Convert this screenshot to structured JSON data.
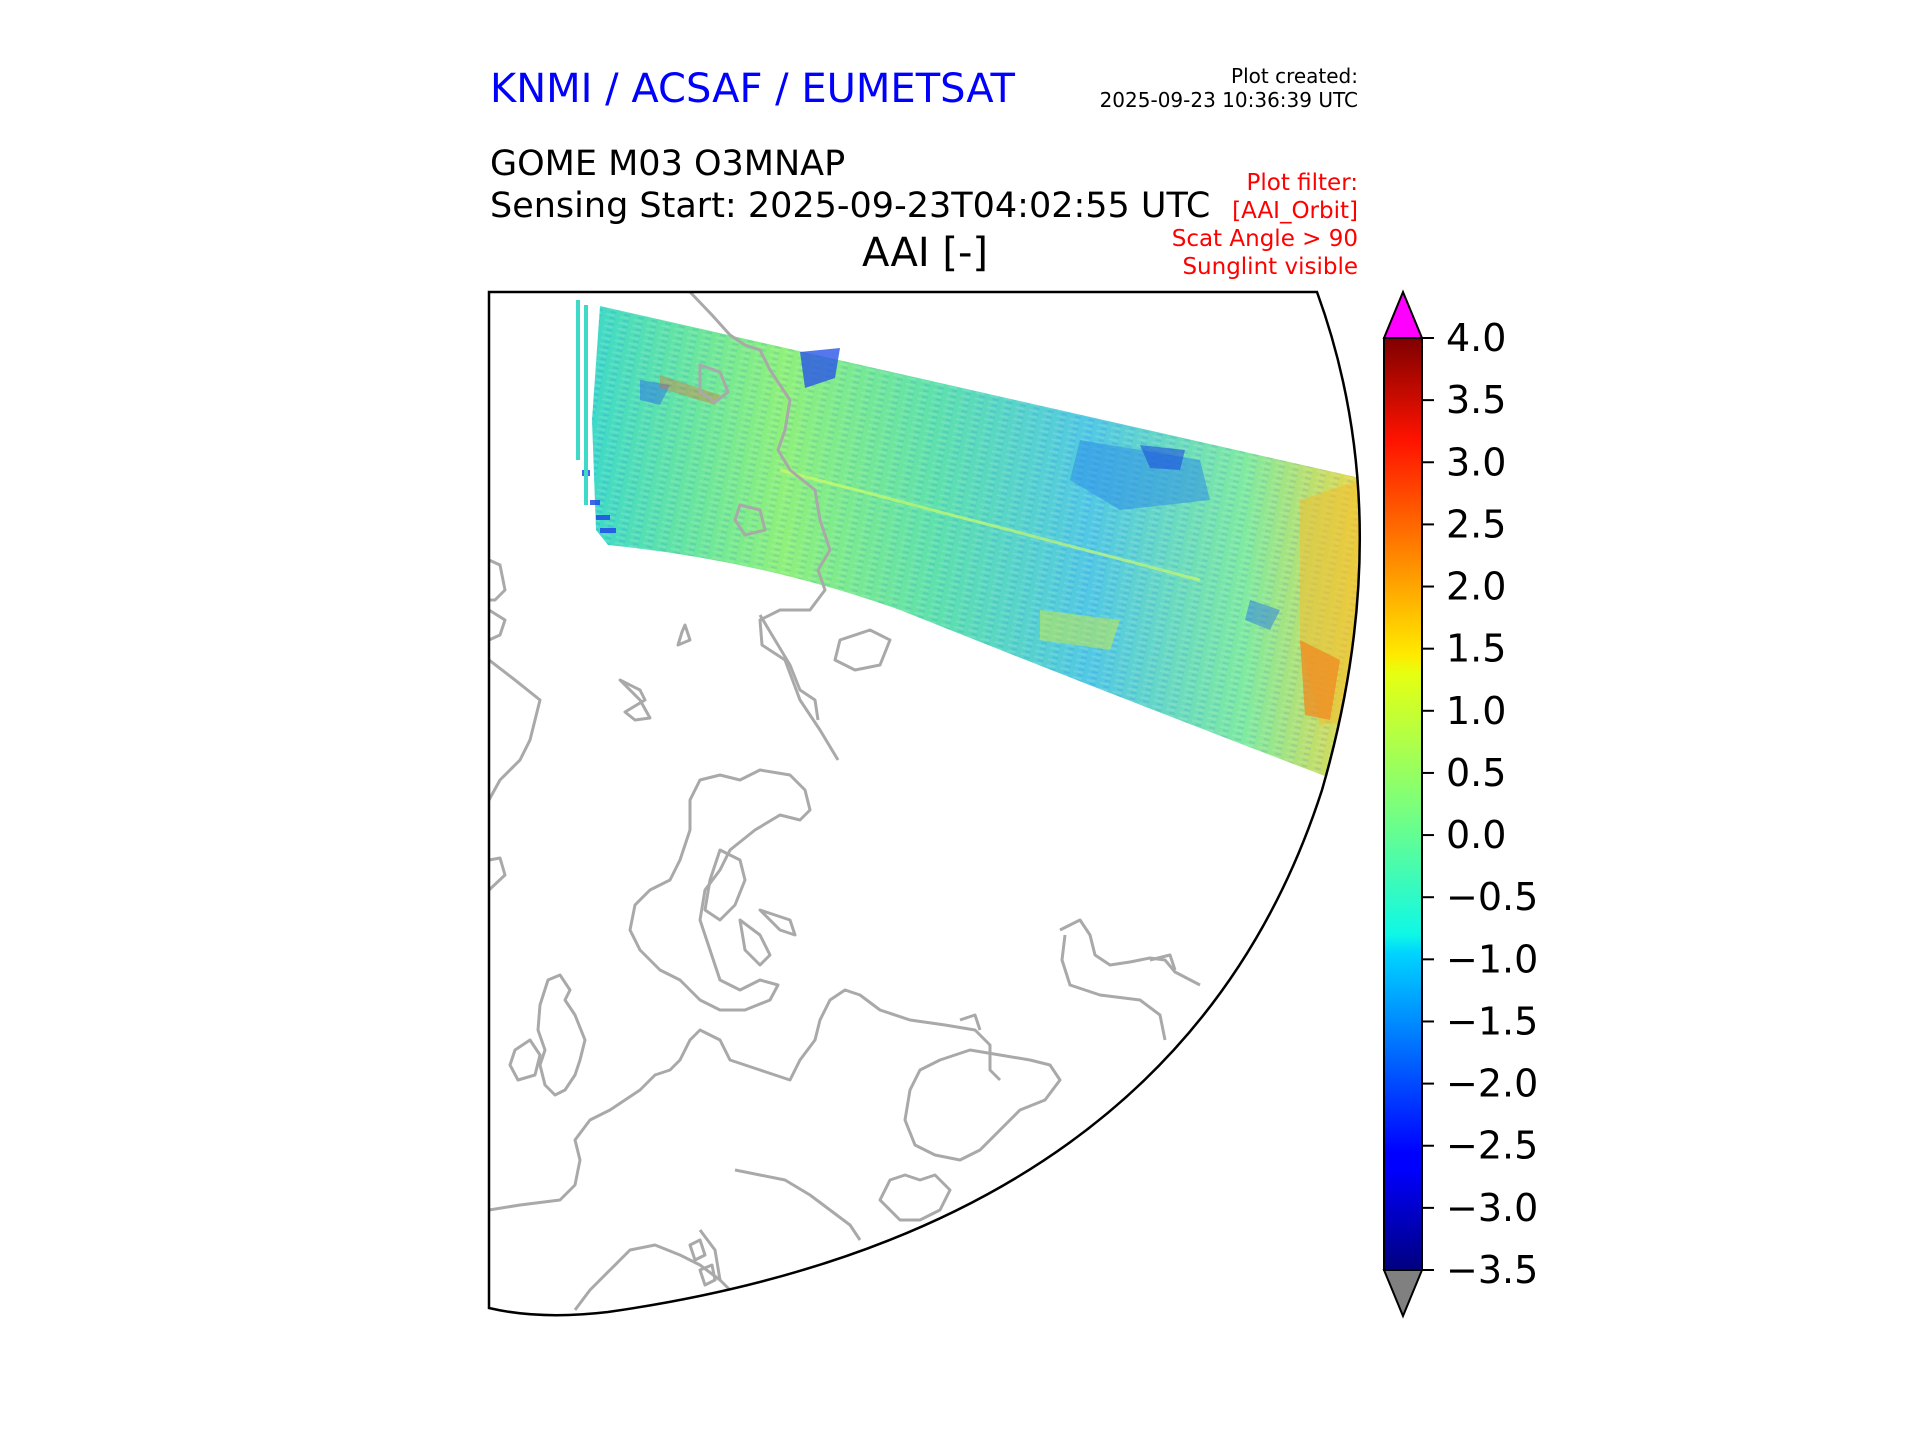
{
  "header": {
    "brand": "KNMI / ACSAF / EUMETSAT",
    "plot_created_label": "Plot created:",
    "plot_created_date": "2025-09-23 10:36:39 UTC",
    "title_line1": "GOME M03 O3MNAP",
    "title_line2": "Sensing Start: 2025-09-23T04:02:55 UTC",
    "variable_title": "AAI [-]"
  },
  "plot_filter": {
    "label": "Plot filter:",
    "items": [
      "[AAI_Orbit]",
      "Scat Angle > 90",
      "Sunglint visible"
    ]
  },
  "colorbar": {
    "ticks": [
      "4.0",
      "3.5",
      "3.0",
      "2.5",
      "2.0",
      "1.5",
      "1.0",
      "0.5",
      "0.0",
      "−0.5",
      "−1.0",
      "−1.5",
      "−2.0",
      "−2.5",
      "−3.0",
      "−3.5"
    ],
    "min": -3.5,
    "max": 4.0,
    "colormap": "jet",
    "over_color": "#ff00ff",
    "under_color": "#808080"
  },
  "map": {
    "coastline_color": "#a9a9a9",
    "swath_description_colors": [
      "#00007f",
      "#0000ff",
      "#00ffff",
      "#7fff7f",
      "#ffff00",
      "#ff7f00",
      "#ff0000",
      "#7f0000"
    ]
  }
}
